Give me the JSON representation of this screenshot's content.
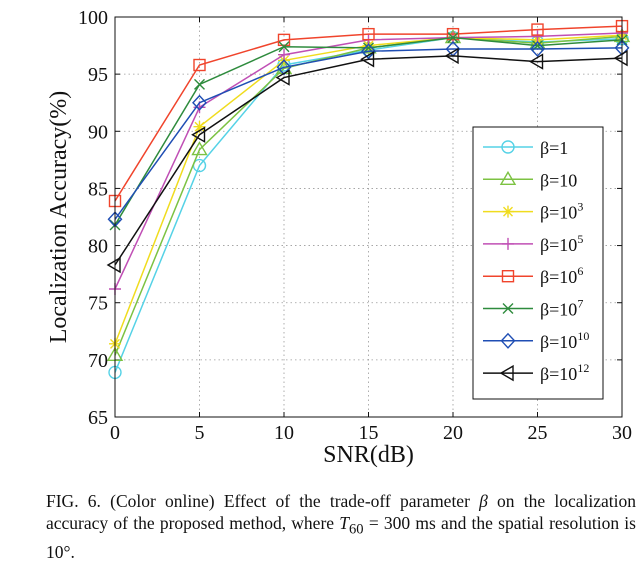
{
  "chart_data": {
    "type": "line",
    "title": "",
    "xlabel": "SNR(dB)",
    "ylabel": "Localization Accuracy(%)",
    "xlim": [
      0,
      30
    ],
    "ylim": [
      65,
      100
    ],
    "xticks": [
      0,
      5,
      10,
      15,
      20,
      25,
      30
    ],
    "yticks": [
      65,
      70,
      75,
      80,
      85,
      90,
      95,
      100
    ],
    "grid": true,
    "legend_position": "right",
    "x": [
      0,
      5,
      10,
      15,
      20,
      25,
      30
    ],
    "series": [
      {
        "name": "β=1",
        "base": "β=1",
        "exp": "",
        "color": "#55d2e6",
        "marker": "circle",
        "values": [
          68.9,
          87.0,
          95.8,
          97.1,
          98.2,
          97.8,
          98.1
        ]
      },
      {
        "name": "β=10",
        "base": "β=10",
        "exp": "",
        "color": "#7cc242",
        "marker": "triangle-up",
        "values": [
          70.4,
          88.4,
          95.5,
          97.3,
          98.2,
          97.7,
          98.3
        ]
      },
      {
        "name": "β=10^3",
        "base": "β=10",
        "exp": "3",
        "color": "#f0dc1e",
        "marker": "star",
        "values": [
          71.4,
          90.4,
          96.2,
          97.5,
          98.2,
          98.0,
          98.4
        ]
      },
      {
        "name": "β=10^5",
        "base": "β=10",
        "exp": "5",
        "color": "#c04fb5",
        "marker": "plus",
        "values": [
          76.2,
          92.1,
          96.7,
          98.0,
          98.2,
          98.3,
          98.6
        ]
      },
      {
        "name": "β=10^6",
        "base": "β=10",
        "exp": "6",
        "color": "#f0442c",
        "marker": "square",
        "values": [
          83.9,
          95.8,
          98.0,
          98.5,
          98.5,
          98.9,
          99.2
        ]
      },
      {
        "name": "β=10^7",
        "base": "β=10",
        "exp": "7",
        "color": "#2e8b3d",
        "marker": "x",
        "values": [
          81.8,
          94.1,
          97.4,
          97.3,
          98.2,
          97.5,
          98.0
        ]
      },
      {
        "name": "β=10^10",
        "base": "β=10",
        "exp": "10",
        "color": "#1f4eb4",
        "marker": "diamond",
        "values": [
          82.3,
          92.5,
          95.6,
          97.0,
          97.2,
          97.2,
          97.3
        ]
      },
      {
        "name": "β=10^12",
        "base": "β=10",
        "exp": "12",
        "color": "#111111",
        "marker": "triangle-left",
        "values": [
          78.3,
          89.7,
          94.7,
          96.3,
          96.6,
          96.1,
          96.4
        ]
      }
    ]
  },
  "caption": {
    "label": "FIG. 6.",
    "part1": " (Color online) Effect of the trade-off parameter ",
    "beta": "β",
    "part2": " on the localization accuracy of the proposed method, where ",
    "t_symbol": "T",
    "t_sub": "60",
    "part3": " = 300 ms and the spatial resolution is 10°."
  }
}
